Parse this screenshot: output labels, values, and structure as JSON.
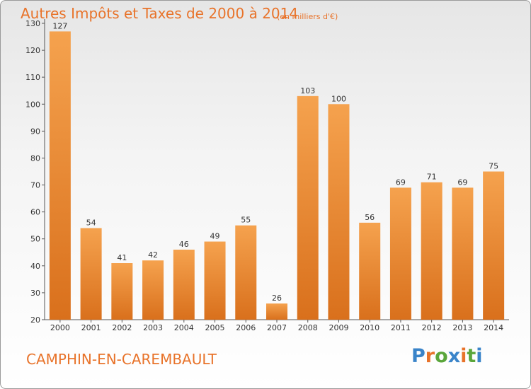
{
  "header": {
    "title": "Autres Impôts et Taxes de 2000 à 2014",
    "subtitle": "(en milliers d'€)"
  },
  "footer": {
    "commune": "CAMPHIN-EN-CAREMBAULT",
    "logo": "Proxiti"
  },
  "colors": {
    "accent": "#e8732a",
    "bar_top": "#f5a24e",
    "bar_bottom": "#d9701c",
    "logo_letters": [
      "#3a84c9",
      "#e8732a",
      "#5aa63b",
      "#3a84c9",
      "#e8732a",
      "#5aa63b",
      "#3a84c9"
    ]
  },
  "chart_data": {
    "type": "bar",
    "title": "Autres Impôts et Taxes de 2000 à 2014",
    "subtitle": "(en milliers d'€)",
    "xlabel": "",
    "ylabel": "",
    "categories": [
      "2000",
      "2001",
      "2002",
      "2003",
      "2004",
      "2005",
      "2006",
      "2007",
      "2008",
      "2009",
      "2010",
      "2011",
      "2012",
      "2013",
      "2014"
    ],
    "values": [
      127,
      54,
      41,
      42,
      46,
      49,
      55,
      26,
      103,
      100,
      56,
      69,
      71,
      69,
      75
    ],
    "ylim": [
      20,
      130
    ],
    "yticks": [
      20,
      30,
      40,
      50,
      60,
      70,
      80,
      90,
      100,
      110,
      120,
      130
    ],
    "grid": false,
    "data_labels": true
  }
}
